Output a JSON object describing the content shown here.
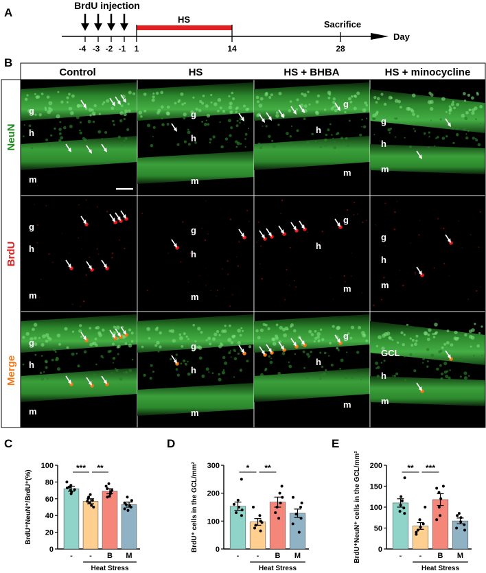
{
  "panels": {
    "A": {
      "letter": "A",
      "injection_label": "BrdU injection",
      "hs_label": "HS",
      "sacrifice_label": "Sacrifice",
      "day_label": "Day",
      "ticks": [
        "-4",
        "-3",
        "-2",
        "-1",
        "1",
        "14",
        "28"
      ],
      "hs_color": "#e41f1f"
    },
    "B": {
      "letter": "B",
      "columns": [
        "Control",
        "HS",
        "HS + BHBA",
        "HS + minocycline"
      ],
      "rows": [
        {
          "label": "NeuN",
          "color": "#1f8a1f"
        },
        {
          "label": "BrdU",
          "color": "#e41f1f"
        },
        {
          "label": "Merge",
          "color": "#f07a1a"
        }
      ],
      "region_labels": {
        "g": "g",
        "h": "h",
        "m": "m"
      },
      "gcl_label": "GCL"
    },
    "C": {
      "letter": "C"
    },
    "D": {
      "letter": "D"
    },
    "E": {
      "letter": "E"
    }
  },
  "chart_data": [
    {
      "type": "bar",
      "panel": "C",
      "categories": [
        "-",
        "-",
        "B",
        "M"
      ],
      "group_label": "Heat Stress",
      "ylabel": "BrdU⁺NeuN⁺/BrdU⁺(%)",
      "ylim": [
        0,
        100
      ],
      "yticks": [
        "0",
        "20",
        "40",
        "60",
        "80",
        "100"
      ],
      "values": [
        72,
        57,
        69,
        53
      ],
      "errors": [
        3,
        3,
        3,
        3
      ],
      "colors": [
        "#8fd3c9",
        "#ffcf8f",
        "#f4867a",
        "#8fb2c4"
      ],
      "points": [
        [
          80,
          76,
          74,
          73,
          71,
          70,
          68,
          66
        ],
        [
          65,
          62,
          60,
          58,
          57,
          55,
          52,
          50
        ],
        [
          78,
          75,
          72,
          70,
          68,
          66,
          63,
          62
        ],
        [
          62,
          58,
          55,
          53,
          52,
          50,
          48,
          46
        ]
      ],
      "significance": [
        {
          "from": 0,
          "to": 1,
          "label": "***"
        },
        {
          "from": 1,
          "to": 2,
          "label": "**"
        }
      ]
    },
    {
      "type": "bar",
      "panel": "D",
      "categories": [
        "-",
        "-",
        "B",
        "M"
      ],
      "group_label": "Heat Stress",
      "ylabel": "BrdU⁺ cells in the GCL/mm²",
      "ylim": [
        0,
        300
      ],
      "yticks": [
        "0",
        "100",
        "200",
        "300"
      ],
      "values": [
        153,
        97,
        168,
        128
      ],
      "errors": [
        15,
        12,
        18,
        15
      ],
      "colors": [
        "#8fd3c9",
        "#ffcf8f",
        "#f4867a",
        "#8fb2c4"
      ],
      "points": [
        [
          250,
          175,
          160,
          150,
          140,
          130,
          120
        ],
        [
          150,
          120,
          100,
          95,
          85,
          75,
          65
        ],
        [
          225,
          200,
          185,
          165,
          150,
          130,
          110
        ],
        [
          185,
          165,
          150,
          125,
          110,
          90,
          60
        ]
      ],
      "significance": [
        {
          "from": 0,
          "to": 1,
          "label": "*"
        },
        {
          "from": 1,
          "to": 2,
          "label": "**"
        }
      ]
    },
    {
      "type": "bar",
      "panel": "E",
      "categories": [
        "-",
        "-",
        "B",
        "M"
      ],
      "group_label": "Heat Stress",
      "ylabel": "BrdU⁺NeuN⁺ cells in the GCL/mm²",
      "ylim": [
        0,
        200
      ],
      "yticks": [
        "0",
        "50",
        "100",
        "150",
        "200"
      ],
      "values": [
        110,
        55,
        118,
        67
      ],
      "errors": [
        10,
        8,
        14,
        7
      ],
      "colors": [
        "#8fd3c9",
        "#ffcf8f",
        "#f4867a",
        "#8fb2c4"
      ],
      "points": [
        [
          170,
          125,
          115,
          105,
          98,
          90,
          85
        ],
        [
          100,
          70,
          60,
          52,
          45,
          40,
          35
        ],
        [
          150,
          145,
          135,
          120,
          100,
          80,
          70
        ],
        [
          85,
          80,
          75,
          65,
          58,
          50,
          45
        ]
      ],
      "significance": [
        {
          "from": 0,
          "to": 1,
          "label": "**"
        },
        {
          "from": 1,
          "to": 2,
          "label": "***"
        }
      ]
    }
  ]
}
